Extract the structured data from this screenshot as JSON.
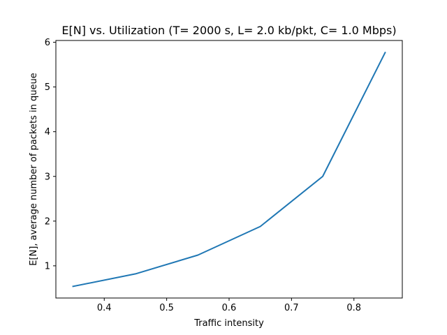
{
  "chart_data": {
    "type": "line",
    "title": "E[N] vs. Utilization (T= 2000 s, L= 2.0 kb/pkt, C= 1.0 Mbps)",
    "xlabel": "Traffic intensity",
    "ylabel": "E[N], average number of packets in queue",
    "xlim": [
      0.3225,
      0.8775
    ],
    "ylim": [
      0.28,
      6.04
    ],
    "xticks": [
      0.4,
      0.5,
      0.6,
      0.7,
      0.8
    ],
    "xtick_labels": [
      "0.4",
      "0.5",
      "0.6",
      "0.7",
      "0.8"
    ],
    "yticks": [
      1,
      2,
      3,
      4,
      5,
      6
    ],
    "ytick_labels": [
      "1",
      "2",
      "3",
      "4",
      "5",
      "6"
    ],
    "grid": false,
    "legend": "none",
    "series": [
      {
        "x": [
          0.35,
          0.45,
          0.55,
          0.65,
          0.75,
          0.85
        ],
        "y": [
          0.54,
          0.82,
          1.24,
          1.88,
          3.0,
          5.77
        ],
        "color": "#1f77b4"
      }
    ]
  }
}
